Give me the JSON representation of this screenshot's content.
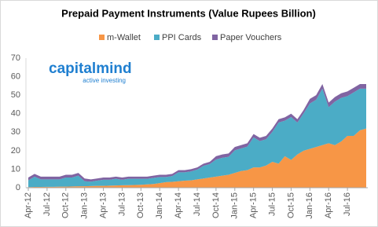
{
  "chart_data": {
    "type": "stacked_area",
    "title": "Prepaid Payment Instruments (Value Rupees Billion)",
    "categories": [
      "Apr-12",
      null,
      null,
      "Jul-12",
      null,
      null,
      "Oct-12",
      null,
      null,
      "Jan-13",
      null,
      null,
      "Apr-13",
      null,
      null,
      "Jul-13",
      null,
      null,
      "Oct-13",
      null,
      null,
      "Jan-14",
      null,
      null,
      "Apr-14",
      null,
      null,
      "Jul-14",
      null,
      null,
      "Oct-14",
      null,
      null,
      "Jan-15",
      null,
      null,
      "Apr-15",
      null,
      null,
      "Jul-15",
      null,
      null,
      "Oct-15",
      null,
      null,
      "Jan-16",
      null,
      null,
      "Apr-16",
      null,
      null,
      "Jul-16",
      null,
      null,
      null
    ],
    "series": [
      {
        "name": "m-Wallet",
        "color": "#f79646",
        "values": [
          0.3,
          0.4,
          0.4,
          0.5,
          0.5,
          0.6,
          0.6,
          0.7,
          0.8,
          0.8,
          0.9,
          1,
          1,
          1.1,
          1.2,
          1.3,
          1.4,
          1.5,
          1.6,
          1.8,
          2,
          2.5,
          3,
          3.2,
          3.5,
          3.8,
          4,
          4.5,
          5,
          5.5,
          6,
          6.5,
          7,
          8,
          9,
          9.5,
          11,
          11,
          12,
          14,
          13,
          17,
          15,
          18,
          20,
          21,
          22,
          23,
          24,
          23,
          25,
          28,
          28,
          31,
          32
        ]
      },
      {
        "name": "PPI Cards",
        "color": "#4bacc6",
        "values": [
          3.7,
          5.6,
          4.1,
          4.0,
          4.0,
          3.9,
          4.9,
          4.8,
          5.7,
          2.7,
          2.4,
          2.8,
          3.3,
          3.2,
          3.6,
          3.0,
          3.4,
          3.3,
          3.2,
          3.0,
          3.3,
          3.3,
          2.8,
          3.1,
          4.8,
          4.5,
          4.8,
          5.3,
          6.8,
          7.3,
          9.2,
          9.7,
          9.7,
          12.2,
          12.2,
          12.7,
          16.2,
          14.2,
          14.2,
          16.2,
          22.2,
          19.2,
          23.2,
          17.2,
          20.2,
          24.5,
          25.5,
          30.5,
          19.5,
          23.5,
          23.5,
          21.5,
          23.5,
          22.5,
          21.5
        ]
      },
      {
        "name": "Paper Vouchers",
        "color": "#8064a2",
        "values": [
          1.5,
          1.5,
          1.5,
          1.5,
          1.5,
          1.5,
          1.5,
          1.5,
          1.5,
          1.5,
          1.2,
          1.2,
          1.2,
          1.2,
          1.2,
          1.2,
          1.2,
          1.2,
          1.2,
          1.2,
          1.2,
          1.2,
          1.2,
          1.2,
          1.2,
          1.2,
          1.2,
          1.2,
          1.2,
          1.2,
          1.8,
          1.8,
          1.8,
          1.8,
          1.8,
          1.8,
          1.8,
          1.8,
          1.8,
          1.8,
          1.8,
          1.8,
          1.8,
          1.8,
          1.8,
          2.5,
          2.5,
          2.5,
          2.5,
          2.5,
          2.5,
          2.5,
          2.5,
          2.5,
          2.5
        ]
      }
    ],
    "ylim": [
      0,
      70
    ],
    "yticks": [
      0,
      10,
      20,
      30,
      40,
      50,
      60,
      70
    ],
    "grid": false,
    "legend": "top"
  },
  "watermark": {
    "name": "capitalmind",
    "tagline": "active investing"
  }
}
